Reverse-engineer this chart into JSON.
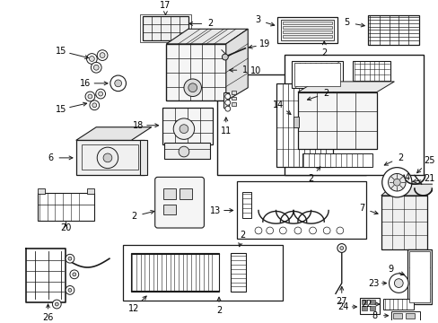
{
  "bg_color": "#ffffff",
  "line_color": "#1a1a1a",
  "fig_width": 4.89,
  "fig_height": 3.6,
  "dpi": 100,
  "label_fontsize": 7.0
}
